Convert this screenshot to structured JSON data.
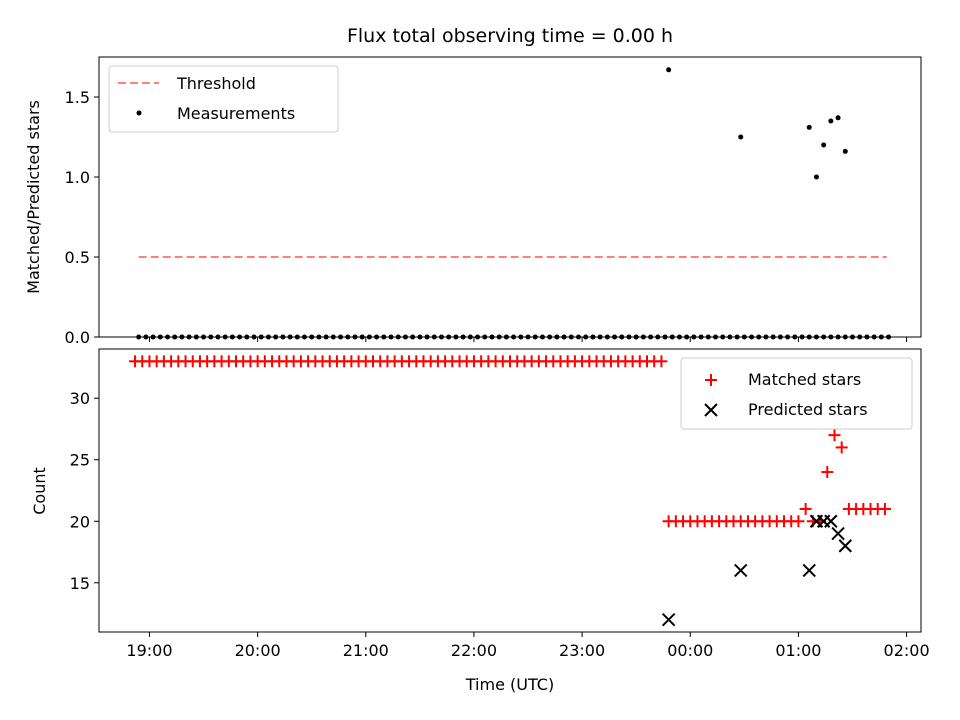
{
  "chart_data": [
    {
      "type": "scatter",
      "title": "Flux total observing time = 0.00 h",
      "ylabel": "Matched/Predicted stars",
      "xlabel": "",
      "xlim": [
        "18:32",
        "02:08"
      ],
      "ylim": [
        0,
        1.75
      ],
      "yticks": [
        0.0,
        0.5,
        1.0,
        1.5
      ],
      "ytick_labels": [
        "0.0",
        "0.5",
        "1.0",
        "1.5"
      ],
      "xticks": [
        "19:00",
        "20:00",
        "21:00",
        "22:00",
        "23:00",
        "00:00",
        "01:00",
        "02:00"
      ],
      "xtick_labels_visible": false,
      "grid": false,
      "legend_position": "top-left",
      "series": [
        {
          "name": "Threshold",
          "kind": "line",
          "style": "dashed",
          "color": "#ff7f7f",
          "x": [
            "18:54",
            "01:49"
          ],
          "y": [
            0.5,
            0.5
          ]
        },
        {
          "name": "Measurements",
          "kind": "scatter",
          "color": "#000000",
          "x": [
            "18:54",
            "18:58",
            "19:02",
            "19:06",
            "19:10",
            "19:14",
            "19:18",
            "19:22",
            "19:26",
            "19:30",
            "19:34",
            "19:38",
            "19:42",
            "19:46",
            "19:50",
            "19:54",
            "19:58",
            "20:02",
            "20:06",
            "20:10",
            "20:14",
            "20:18",
            "20:22",
            "20:26",
            "20:30",
            "20:34",
            "20:38",
            "20:42",
            "20:46",
            "20:50",
            "20:54",
            "20:58",
            "21:02",
            "21:06",
            "21:10",
            "21:14",
            "21:18",
            "21:22",
            "21:26",
            "21:30",
            "21:34",
            "21:38",
            "21:42",
            "21:46",
            "21:50",
            "21:54",
            "21:58",
            "22:02",
            "22:06",
            "22:10",
            "22:14",
            "22:18",
            "22:22",
            "22:26",
            "22:30",
            "22:34",
            "22:38",
            "22:42",
            "22:46",
            "22:50",
            "22:54",
            "22:58",
            "23:02",
            "23:06",
            "23:10",
            "23:14",
            "23:18",
            "23:22",
            "23:26",
            "23:30",
            "23:34",
            "23:38",
            "23:42",
            "23:46",
            "23:50",
            "23:54",
            "23:58",
            "00:02",
            "00:06",
            "00:10",
            "00:14",
            "00:18",
            "00:22",
            "00:26",
            "00:30",
            "00:34",
            "00:38",
            "00:42",
            "00:46",
            "00:50",
            "00:54",
            "00:58",
            "01:02",
            "01:06",
            "01:10",
            "01:14",
            "01:18",
            "01:22",
            "01:26",
            "01:30",
            "01:34",
            "01:38",
            "01:42",
            "01:46",
            "01:50"
          ],
          "y": [
            0,
            0,
            0,
            0,
            0,
            0,
            0,
            0,
            0,
            0,
            0,
            0,
            0,
            0,
            0,
            0,
            0,
            0,
            0,
            0,
            0,
            0,
            0,
            0,
            0,
            0,
            0,
            0,
            0,
            0,
            0,
            0,
            0,
            0,
            0,
            0,
            0,
            0,
            0,
            0,
            0,
            0,
            0,
            0,
            0,
            0,
            0,
            0,
            0,
            0,
            0,
            0,
            0,
            0,
            0,
            0,
            0,
            0,
            0,
            0,
            0,
            0,
            0,
            0,
            0,
            0,
            0,
            0,
            0,
            0,
            0,
            0,
            0,
            0,
            0,
            0,
            0,
            0,
            0,
            0,
            0,
            0,
            0,
            0,
            0,
            0,
            0,
            0,
            0,
            0,
            0,
            0,
            0,
            0,
            0,
            0,
            0,
            0,
            0,
            0,
            0,
            0,
            0,
            0,
            0
          ]
        },
        {
          "name": "Measurements",
          "kind": "scatter",
          "color": "#000000",
          "x": [
            "23:48",
            "00:28",
            "01:06",
            "01:10",
            "01:14",
            "01:18",
            "01:22",
            "01:26"
          ],
          "y": [
            1.67,
            1.25,
            1.31,
            1.0,
            1.2,
            1.35,
            1.37,
            1.16
          ]
        }
      ]
    },
    {
      "type": "scatter",
      "title": "",
      "ylabel": "Count",
      "xlabel": "Time (UTC)",
      "xlim": [
        "18:32",
        "02:08"
      ],
      "ylim": [
        11,
        34
      ],
      "yticks": [
        15,
        20,
        25,
        30
      ],
      "ytick_labels": [
        "15",
        "20",
        "25",
        "30"
      ],
      "xticks": [
        "19:00",
        "20:00",
        "21:00",
        "22:00",
        "23:00",
        "00:00",
        "01:00",
        "02:00"
      ],
      "xtick_labels": [
        "19:00",
        "20:00",
        "21:00",
        "22:00",
        "23:00",
        "00:00",
        "01:00",
        "02:00"
      ],
      "grid": false,
      "legend_position": "top-right",
      "series": [
        {
          "name": "Matched stars",
          "marker": "plus",
          "color": "#ff0000",
          "x": [
            "18:52",
            "18:56",
            "19:00",
            "19:04",
            "19:08",
            "19:12",
            "19:16",
            "19:20",
            "19:24",
            "19:28",
            "19:32",
            "19:36",
            "19:40",
            "19:44",
            "19:48",
            "19:52",
            "19:56",
            "20:00",
            "20:04",
            "20:08",
            "20:12",
            "20:16",
            "20:20",
            "20:24",
            "20:28",
            "20:32",
            "20:36",
            "20:40",
            "20:44",
            "20:48",
            "20:52",
            "20:56",
            "21:00",
            "21:04",
            "21:08",
            "21:12",
            "21:16",
            "21:20",
            "21:24",
            "21:28",
            "21:32",
            "21:36",
            "21:40",
            "21:44",
            "21:48",
            "21:52",
            "21:56",
            "22:00",
            "22:04",
            "22:08",
            "22:12",
            "22:16",
            "22:20",
            "22:24",
            "22:28",
            "22:32",
            "22:36",
            "22:40",
            "22:44",
            "22:48",
            "22:52",
            "22:56",
            "23:00",
            "23:04",
            "23:08",
            "23:12",
            "23:16",
            "23:20",
            "23:24",
            "23:28",
            "23:32",
            "23:36",
            "23:40",
            "23:44",
            "23:48",
            "23:52",
            "23:56",
            "00:00",
            "00:04",
            "00:08",
            "00:12",
            "00:16",
            "00:20",
            "00:24",
            "00:28",
            "00:32",
            "00:36",
            "00:40",
            "00:44",
            "00:48",
            "00:52",
            "00:56",
            "01:00",
            "01:04",
            "01:08",
            "01:12",
            "01:16",
            "01:20",
            "01:24",
            "01:28",
            "01:32",
            "01:36",
            "01:40",
            "01:44",
            "01:48"
          ],
          "y": [
            33,
            33,
            33,
            33,
            33,
            33,
            33,
            33,
            33,
            33,
            33,
            33,
            33,
            33,
            33,
            33,
            33,
            33,
            33,
            33,
            33,
            33,
            33,
            33,
            33,
            33,
            33,
            33,
            33,
            33,
            33,
            33,
            33,
            33,
            33,
            33,
            33,
            33,
            33,
            33,
            33,
            33,
            33,
            33,
            33,
            33,
            33,
            33,
            33,
            33,
            33,
            33,
            33,
            33,
            33,
            33,
            33,
            33,
            33,
            33,
            33,
            33,
            33,
            33,
            33,
            33,
            33,
            33,
            33,
            33,
            33,
            33,
            33,
            33,
            20,
            20,
            20,
            20,
            20,
            20,
            20,
            20,
            20,
            20,
            20,
            20,
            20,
            20,
            20,
            20,
            20,
            20,
            20,
            21,
            20,
            20,
            24,
            27,
            26,
            21,
            21,
            21,
            21,
            21,
            21
          ]
        },
        {
          "name": "Predicted stars",
          "marker": "x",
          "color": "#000000",
          "x": [
            "23:48",
            "00:28",
            "01:06",
            "01:10",
            "01:14",
            "01:18",
            "01:22",
            "01:26"
          ],
          "y": [
            12,
            16,
            16,
            20,
            20,
            20,
            19,
            18
          ]
        }
      ]
    }
  ]
}
